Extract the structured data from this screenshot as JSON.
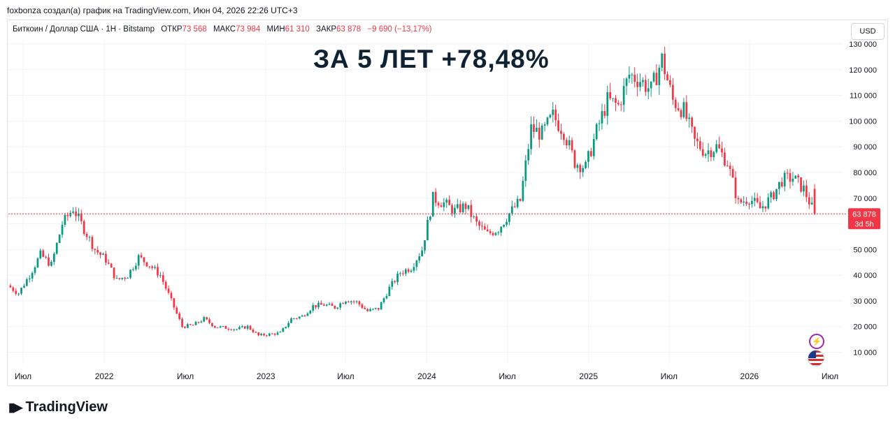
{
  "caption": "foxbonza создал(а) график на TradingView.com, Июн 04, 2026 22:26 UTC+3",
  "legend": {
    "symbol": "Биткоин / Доллар США · 1Н · Bitstamp",
    "open_label": "ОТКР",
    "open_value": "73 568",
    "high_label": "МАКС",
    "high_value": "73 984",
    "low_label": "МИН",
    "low_value": "61 310",
    "close_label": "ЗАКР",
    "close_value": "63 878",
    "change": "−9 690 (−13,17%)"
  },
  "currency_button": "USD",
  "headline": "ЗА 5 ЛЕТ +78,48%",
  "price_badge": {
    "price": "63 878",
    "countdown": "3d 5h"
  },
  "brand": "TradingView",
  "colors": {
    "up": "#089981",
    "down": "#f23645",
    "grid": "#f0f3fa",
    "badge": "#f23645"
  },
  "icons": {
    "event": "lightning-icon",
    "country": "us-flag-icon",
    "logo": "tradingview-logo-icon"
  },
  "chart_data": {
    "type": "candlestick",
    "interval": "1W",
    "ylim": [
      6000,
      132000
    ],
    "y_ticks": [
      10000,
      20000,
      30000,
      40000,
      50000,
      60000,
      70000,
      80000,
      90000,
      100000,
      110000,
      120000,
      130000
    ],
    "y_tick_labels": [
      "10 000",
      "20 000",
      "30 000",
      "40 000",
      "50 000",
      "",
      "70 000",
      "80 000",
      "90 000",
      "100 000",
      "110 000",
      "120 000",
      "130 000"
    ],
    "x_ticks": [
      {
        "label": "Июл",
        "t": 0.0
      },
      {
        "label": "2022",
        "t": 0.123
      },
      {
        "label": "Июл",
        "t": 0.246
      },
      {
        "label": "2023",
        "t": 0.368
      },
      {
        "label": "Июл",
        "t": 0.489
      },
      {
        "label": "2024",
        "t": 0.612
      },
      {
        "label": "Июл",
        "t": 0.734
      },
      {
        "label": "2025",
        "t": 0.857
      },
      {
        "label": "Июл",
        "t": 0.979
      },
      {
        "label": "2026",
        "t": 1.101
      },
      {
        "label": "Июл",
        "t": 1.223
      }
    ],
    "last_price": 63878,
    "path": [
      36000,
      33000,
      40000,
      48000,
      44000,
      60000,
      66000,
      58000,
      50000,
      46000,
      38000,
      40000,
      47000,
      44000,
      40000,
      30000,
      20000,
      20500,
      23000,
      20000,
      19500,
      19000,
      20000,
      16500,
      17000,
      17500,
      23000,
      24000,
      28000,
      28500,
      27500,
      30500,
      29500,
      26000,
      27000,
      35000,
      41000,
      43000,
      50000,
      70000,
      68000,
      65000,
      67000,
      60000,
      56000,
      58000,
      64000,
      69000,
      97000,
      95000,
      102000,
      96000,
      84000,
      82000,
      96000,
      108000,
      106000,
      118000,
      116000,
      112000,
      124000,
      108000,
      104000,
      92000,
      88000,
      90000,
      84000,
      68000,
      70000,
      66000,
      70000,
      77000,
      78000,
      73500,
      63878
    ]
  }
}
